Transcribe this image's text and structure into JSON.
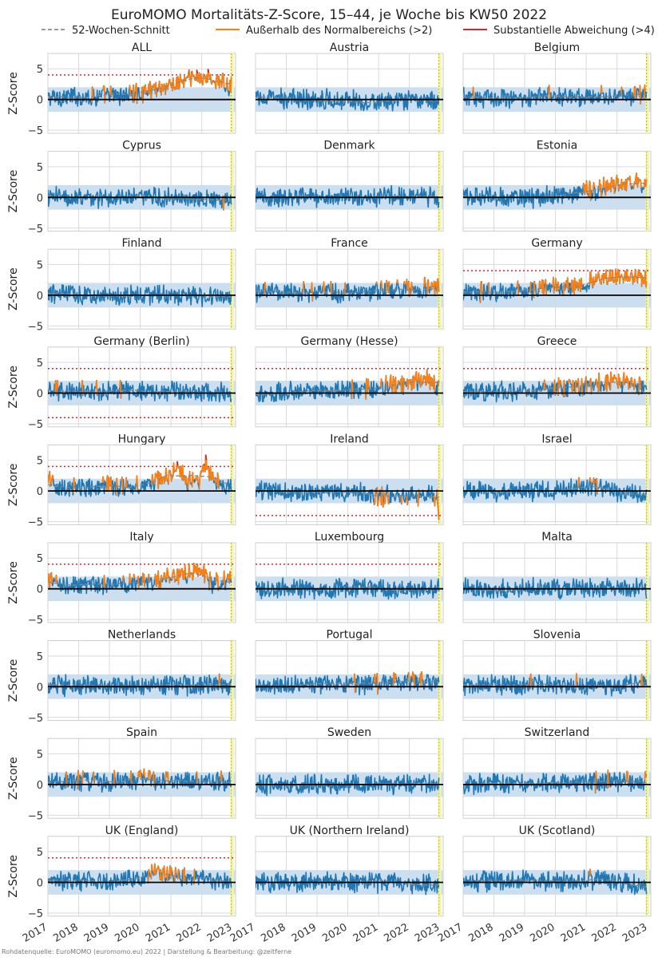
{
  "title": "EuroMOMO Mortalitäts-Z-Score, 15–44, je Woche bis KW50 2022",
  "source": "Rohdatenquelle: EuroMOMO (euromomo.eu) 2022 | Darstellung & Bearbeitung: @zeitferne",
  "legend": [
    {
      "label": "52-Wochen-Schnitt",
      "color": "#999999",
      "style": "dashed"
    },
    {
      "label": "Außerhalb des Normalbereichs (>2)",
      "color": "#ff7f0e",
      "style": "solid"
    },
    {
      "label": "Substantielle Abweichung (>4)",
      "color": "#d62728",
      "style": "solid"
    }
  ],
  "colors": {
    "series": "#1f77b4",
    "above2": "#ff7f0e",
    "above4": "#d62728",
    "band": "#c6dbef",
    "grid": "#d9d9d9",
    "zero": "#000000",
    "threshold": "#d62728",
    "marker_week": "#c8c800"
  },
  "chart_data": {
    "type": "line",
    "ylabel": "Z-Score",
    "xlim": [
      2017,
      2023.1
    ],
    "ylim": [
      -5.5,
      7.5
    ],
    "xticks": [
      2017,
      2018,
      2019,
      2020,
      2021,
      2022,
      2023
    ],
    "yticks": [
      -5,
      0,
      5
    ],
    "normal_band": [
      -2,
      2
    ],
    "threshold": 4,
    "current_week": 2022.96,
    "layout": "grid 9 rows x 3 columns, shared axes",
    "panels": [
      {
        "name": "ALL",
        "threshold_lines": [
          4
        ],
        "profile": [
          [
            2017,
            0.3
          ],
          [
            2018,
            0.5
          ],
          [
            2019,
            0.6
          ],
          [
            2020,
            1.0
          ],
          [
            2020.5,
            2.0
          ],
          [
            2021,
            2.2
          ],
          [
            2021.5,
            3.2
          ],
          [
            2022,
            3.8
          ],
          [
            2022.5,
            3.0
          ],
          [
            2023,
            1.8
          ]
        ]
      },
      {
        "name": "Austria",
        "threshold_lines": [],
        "profile": [
          [
            2017,
            0.2
          ],
          [
            2020,
            0.0
          ],
          [
            2021,
            -0.6
          ],
          [
            2022,
            -0.3
          ],
          [
            2023,
            -0.2
          ]
        ]
      },
      {
        "name": "Belgium",
        "threshold_lines": [],
        "profile": [
          [
            2017,
            0.3
          ],
          [
            2020,
            0.5
          ],
          [
            2021,
            0.6
          ],
          [
            2022,
            0.6
          ],
          [
            2023,
            0.8
          ]
        ]
      },
      {
        "name": "Cyprus",
        "threshold_lines": [],
        "profile": [
          [
            2017,
            0.0
          ],
          [
            2020,
            0.0
          ],
          [
            2022,
            0.0
          ],
          [
            2023,
            -0.5
          ]
        ]
      },
      {
        "name": "Denmark",
        "threshold_lines": [],
        "profile": [
          [
            2017,
            0.0
          ],
          [
            2020,
            0.2
          ],
          [
            2022,
            0.2
          ],
          [
            2023,
            0.0
          ]
        ]
      },
      {
        "name": "Estonia",
        "threshold_lines": [],
        "profile": [
          [
            2017,
            0.2
          ],
          [
            2019,
            0.0
          ],
          [
            2020,
            0.2
          ],
          [
            2021,
            1.0
          ],
          [
            2021.5,
            1.5
          ],
          [
            2022,
            2.0
          ],
          [
            2023,
            2.3
          ]
        ]
      },
      {
        "name": "Finland",
        "threshold_lines": [],
        "profile": [
          [
            2017,
            0.2
          ],
          [
            2020,
            0.0
          ],
          [
            2022,
            -0.2
          ],
          [
            2023,
            -0.7
          ]
        ]
      },
      {
        "name": "France",
        "threshold_lines": [],
        "profile": [
          [
            2017,
            0.3
          ],
          [
            2020,
            0.6
          ],
          [
            2021,
            0.8
          ],
          [
            2022,
            1.0
          ],
          [
            2023,
            1.2
          ]
        ]
      },
      {
        "name": "Germany",
        "threshold_lines": [
          4
        ],
        "profile": [
          [
            2017,
            0.3
          ],
          [
            2019,
            0.8
          ],
          [
            2020,
            1.3
          ],
          [
            2021,
            2.0
          ],
          [
            2021.5,
            2.5
          ],
          [
            2022,
            3.0
          ],
          [
            2023,
            2.8
          ]
        ]
      },
      {
        "name": "Germany (Berlin)",
        "threshold_lines": [
          4,
          -4
        ],
        "profile": [
          [
            2017,
            0.4
          ],
          [
            2020,
            0.3
          ],
          [
            2022,
            0.1
          ],
          [
            2022.9,
            0.0
          ],
          [
            2023,
            -3.0
          ]
        ]
      },
      {
        "name": "Germany (Hesse)",
        "threshold_lines": [
          4
        ],
        "profile": [
          [
            2017,
            0.0
          ],
          [
            2020,
            0.5
          ],
          [
            2021,
            0.9
          ],
          [
            2022,
            1.8
          ],
          [
            2022.5,
            2.4
          ],
          [
            2023,
            1.2
          ]
        ]
      },
      {
        "name": "Greece",
        "threshold_lines": [
          4
        ],
        "profile": [
          [
            2017,
            0.2
          ],
          [
            2019,
            0.3
          ],
          [
            2020,
            0.7
          ],
          [
            2021,
            1.0
          ],
          [
            2021.7,
            2.2
          ],
          [
            2022,
            2.0
          ],
          [
            2023,
            1.0
          ]
        ]
      },
      {
        "name": "Hungary",
        "threshold_lines": [
          4
        ],
        "profile": [
          [
            2017,
            1.5
          ],
          [
            2017.5,
            0.5
          ],
          [
            2020,
            0.8
          ],
          [
            2020.9,
            2.5
          ],
          [
            2021.2,
            4.0
          ],
          [
            2021.5,
            1.5
          ],
          [
            2021.9,
            1.5
          ],
          [
            2022.1,
            4.5
          ],
          [
            2022.4,
            1.5
          ],
          [
            2023,
            0.4
          ]
        ]
      },
      {
        "name": "Ireland",
        "threshold_lines": [
          -4
        ],
        "profile": [
          [
            2017,
            0.0
          ],
          [
            2020,
            -0.3
          ],
          [
            2021,
            -0.8
          ],
          [
            2022,
            -0.8
          ],
          [
            2022.9,
            -0.8
          ],
          [
            2023,
            -4.5
          ]
        ]
      },
      {
        "name": "Israel",
        "threshold_lines": [],
        "profile": [
          [
            2017,
            0.0
          ],
          [
            2020,
            0.0
          ],
          [
            2021.3,
            1.0
          ],
          [
            2021.6,
            0.4
          ],
          [
            2022,
            -0.3
          ],
          [
            2023,
            -0.6
          ]
        ]
      },
      {
        "name": "Italy",
        "threshold_lines": [
          4
        ],
        "profile": [
          [
            2017,
            2.0
          ],
          [
            2017.5,
            0.6
          ],
          [
            2019,
            0.8
          ],
          [
            2020,
            1.0
          ],
          [
            2020.5,
            1.4
          ],
          [
            2021,
            2.2
          ],
          [
            2021.5,
            2.4
          ],
          [
            2022,
            2.8
          ],
          [
            2022.4,
            0.8
          ],
          [
            2023,
            1.4
          ]
        ]
      },
      {
        "name": "Luxembourg",
        "threshold_lines": [
          4
        ],
        "profile": [
          [
            2017,
            0.0
          ],
          [
            2020,
            0.0
          ],
          [
            2023,
            0.0
          ]
        ]
      },
      {
        "name": "Malta",
        "threshold_lines": [],
        "profile": [
          [
            2017,
            0.0
          ],
          [
            2020,
            0.0
          ],
          [
            2023,
            0.0
          ]
        ]
      },
      {
        "name": "Netherlands",
        "threshold_lines": [],
        "profile": [
          [
            2017,
            0.2
          ],
          [
            2020,
            0.2
          ],
          [
            2022,
            0.2
          ],
          [
            2023,
            0.3
          ]
        ]
      },
      {
        "name": "Portugal",
        "threshold_lines": [],
        "profile": [
          [
            2017,
            0.3
          ],
          [
            2020,
            0.3
          ],
          [
            2021,
            0.5
          ],
          [
            2022,
            0.8
          ],
          [
            2023,
            1.0
          ]
        ]
      },
      {
        "name": "Slovenia",
        "threshold_lines": [],
        "profile": [
          [
            2017,
            0.3
          ],
          [
            2020,
            0.2
          ],
          [
            2022,
            0.3
          ],
          [
            2023,
            0.5
          ]
        ]
      },
      {
        "name": "Spain",
        "threshold_lines": [],
        "profile": [
          [
            2017,
            0.6
          ],
          [
            2019,
            0.4
          ],
          [
            2020,
            0.9
          ],
          [
            2021,
            0.8
          ],
          [
            2022,
            0.6
          ],
          [
            2023,
            0.4
          ]
        ]
      },
      {
        "name": "Sweden",
        "threshold_lines": [],
        "profile": [
          [
            2017,
            0.0
          ],
          [
            2020,
            0.0
          ],
          [
            2023,
            0.0
          ]
        ]
      },
      {
        "name": "Switzerland",
        "threshold_lines": [],
        "profile": [
          [
            2017,
            0.2
          ],
          [
            2020,
            0.3
          ],
          [
            2022,
            0.6
          ],
          [
            2023,
            0.6
          ]
        ]
      },
      {
        "name": "UK (England)",
        "threshold_lines": [
          4
        ],
        "profile": [
          [
            2017,
            0.2
          ],
          [
            2019,
            0.3
          ],
          [
            2020,
            0.6
          ],
          [
            2020.5,
            1.5
          ],
          [
            2021,
            1.3
          ],
          [
            2021.5,
            0.8
          ],
          [
            2022,
            0.8
          ],
          [
            2022.7,
            0.4
          ],
          [
            2023,
            -0.8
          ]
        ]
      },
      {
        "name": "UK (Northern Ireland)",
        "threshold_lines": [],
        "profile": [
          [
            2017,
            0.0
          ],
          [
            2020,
            0.0
          ],
          [
            2021.5,
            0.0
          ],
          [
            2022,
            -0.4
          ],
          [
            2023,
            -0.3
          ]
        ]
      },
      {
        "name": "UK (Scotland)",
        "threshold_lines": [],
        "profile": [
          [
            2017,
            0.2
          ],
          [
            2020,
            0.2
          ],
          [
            2021,
            0.4
          ],
          [
            2022,
            0.3
          ],
          [
            2023,
            -0.5
          ]
        ]
      }
    ]
  }
}
